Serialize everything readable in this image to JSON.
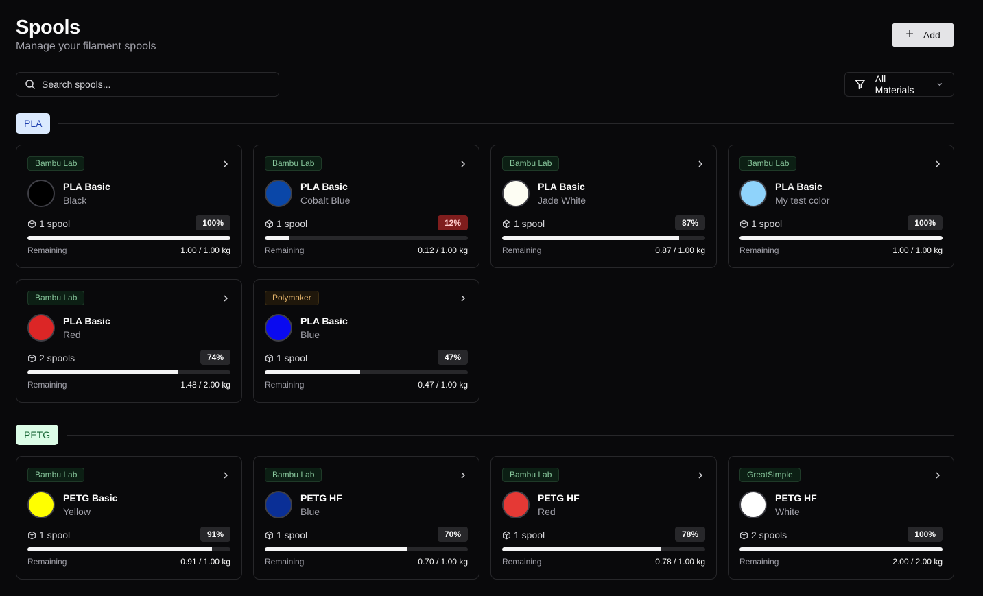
{
  "header": {
    "title": "Spools",
    "subtitle": "Manage your filament spools",
    "add_label": "Add"
  },
  "search": {
    "placeholder": "Search spools..."
  },
  "filter": {
    "label": "All Materials"
  },
  "sections": [
    {
      "label": "PLA",
      "cards": [
        {
          "brand": "Bambu Lab",
          "name": "PLA Basic",
          "color_name": "Black",
          "swatch": "#000000",
          "spools": "1 spool",
          "percent": "100%",
          "fraction": 1.0,
          "remaining_label": "Remaining",
          "remaining": "1.00 / 1.00 kg",
          "low": false
        },
        {
          "brand": "Bambu Lab",
          "name": "PLA Basic",
          "color_name": "Cobalt Blue",
          "swatch": "#0a47a8",
          "spools": "1 spool",
          "percent": "12%",
          "fraction": 0.12,
          "remaining_label": "Remaining",
          "remaining": "0.12 / 1.00 kg",
          "low": true
        },
        {
          "brand": "Bambu Lab",
          "name": "PLA Basic",
          "color_name": "Jade White",
          "swatch": "#fdfdf3",
          "spools": "1 spool",
          "percent": "87%",
          "fraction": 0.87,
          "remaining_label": "Remaining",
          "remaining": "0.87 / 1.00 kg",
          "low": false
        },
        {
          "brand": "Bambu Lab",
          "name": "PLA Basic",
          "color_name": "My test color",
          "swatch": "#8fd3fb",
          "spools": "1 spool",
          "percent": "100%",
          "fraction": 1.0,
          "remaining_label": "Remaining",
          "remaining": "1.00 / 1.00 kg",
          "low": false
        },
        {
          "brand": "Bambu Lab",
          "name": "PLA Basic",
          "color_name": "Red",
          "swatch": "#dc2626",
          "spools": "2 spools",
          "percent": "74%",
          "fraction": 0.74,
          "remaining_label": "Remaining",
          "remaining": "1.48 / 2.00 kg",
          "low": false
        },
        {
          "brand": "Polymaker",
          "name": "PLA Basic",
          "color_name": "Blue",
          "swatch": "#0a0af0",
          "spools": "1 spool",
          "percent": "47%",
          "fraction": 0.47,
          "remaining_label": "Remaining",
          "remaining": "0.47 / 1.00 kg",
          "low": false
        }
      ]
    },
    {
      "label": "PETG",
      "cards": [
        {
          "brand": "Bambu Lab",
          "name": "PETG Basic",
          "color_name": "Yellow",
          "swatch": "#ffff00",
          "spools": "1 spool",
          "percent": "91%",
          "fraction": 0.91,
          "remaining_label": "Remaining",
          "remaining": "0.91 / 1.00 kg",
          "low": false
        },
        {
          "brand": "Bambu Lab",
          "name": "PETG HF",
          "color_name": "Blue",
          "swatch": "#0a2f96",
          "spools": "1 spool",
          "percent": "70%",
          "fraction": 0.7,
          "remaining_label": "Remaining",
          "remaining": "0.70 / 1.00 kg",
          "low": false
        },
        {
          "brand": "Bambu Lab",
          "name": "PETG HF",
          "color_name": "Red",
          "swatch": "#e53935",
          "spools": "1 spool",
          "percent": "78%",
          "fraction": 0.78,
          "remaining_label": "Remaining",
          "remaining": "0.78 / 1.00 kg",
          "low": false
        },
        {
          "brand": "GreatSimple",
          "name": "PETG HF",
          "color_name": "White",
          "swatch": "#ffffff",
          "spools": "2 spools",
          "percent": "100%",
          "fraction": 1.0,
          "remaining_label": "Remaining",
          "remaining": "2.00 / 2.00 kg",
          "low": false
        }
      ]
    }
  ]
}
